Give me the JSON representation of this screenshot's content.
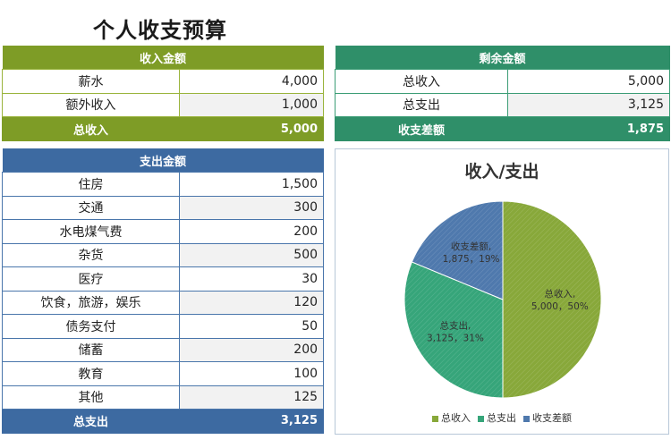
{
  "title": "个人收支预算",
  "income": {
    "header": "收入金额",
    "rows": [
      {
        "label": "薪水",
        "value": "4,000"
      },
      {
        "label": "额外收入",
        "value": "1,000"
      }
    ],
    "total_label": "总收入",
    "total_value": "5,000"
  },
  "remain": {
    "header": "剩余金额",
    "rows": [
      {
        "label": "总收入",
        "value": "5,000"
      },
      {
        "label": "总支出",
        "value": "3,125"
      }
    ],
    "total_label": "收支差额",
    "total_value": "1,875"
  },
  "expense": {
    "header": "支出金额",
    "rows": [
      {
        "label": "住房",
        "value": "1,500"
      },
      {
        "label": "交通",
        "value": "300"
      },
      {
        "label": "水电煤气费",
        "value": "200"
      },
      {
        "label": "杂货",
        "value": "500"
      },
      {
        "label": "医疗",
        "value": "30"
      },
      {
        "label": "饮食，旅游，娱乐",
        "value": "120"
      },
      {
        "label": "债务支付",
        "value": "50"
      },
      {
        "label": "储蓄",
        "value": "200"
      },
      {
        "label": "教育",
        "value": "100"
      },
      {
        "label": "其他",
        "value": "125"
      }
    ],
    "total_label": "总支出",
    "total_value": "3,125"
  },
  "colors": {
    "green": "#7e9c26",
    "teal": "#2f8f69",
    "blue": "#3d6aa1"
  },
  "chart_data": {
    "type": "pie",
    "title": "收入/支出",
    "categories": [
      "总收入",
      "总支出",
      "收支差额"
    ],
    "values": [
      5000,
      3125,
      1875
    ],
    "percents": [
      50,
      31,
      19
    ],
    "labels": [
      "总收入,\n5,000，50%",
      "总支出,\n3,125，31%",
      "收支差额,\n1,875，19%"
    ],
    "colors": [
      "#88a83a",
      "#36a57a",
      "#4f79ad"
    ],
    "legend_position": "bottom"
  }
}
